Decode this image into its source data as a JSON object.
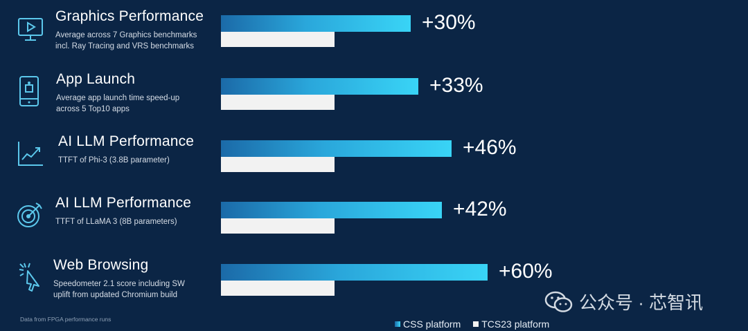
{
  "chart_data": {
    "type": "bar",
    "orientation": "horizontal",
    "categories": [
      {
        "title": "Graphics Performance",
        "desc": "Average across 7 Graphics benchmarks\nincl. Ray Tracing and VRS benchmarks",
        "icon": "monitor-play-icon",
        "label": "+30%"
      },
      {
        "title": "App Launch",
        "desc": "Average app launch time speed-up\nacross 5 Top10 apps",
        "icon": "smartphone-app-icon",
        "label": "+33%"
      },
      {
        "title": "AI LLM Performance",
        "desc": "TTFT of Phi-3 (3.8B parameter)",
        "icon": "trend-chart-icon",
        "label": "+46%"
      },
      {
        "title": "AI LLM Performance",
        "desc": "TTFT of LLaMA 3 (8B parameters)",
        "icon": "target-icon",
        "label": "+42%"
      },
      {
        "title": "Web Browsing",
        "desc": "Speedometer 2.1 score including SW\nuplift from updated Chromium build",
        "icon": "cursor-click-icon",
        "label": "+60%"
      }
    ],
    "series": [
      {
        "name": "CSS platform",
        "values": [
          130,
          133,
          146,
          142,
          160
        ],
        "color": "#39d4f6"
      },
      {
        "name": "TCS23 platform",
        "values": [
          100,
          100,
          100,
          100,
          100
        ],
        "color": "#f2f2f2"
      }
    ],
    "legend_position": "bottom",
    "grid": false
  },
  "footnote": "Data from FPGA performance runs",
  "watermark": "公众号 · 芯智讯"
}
